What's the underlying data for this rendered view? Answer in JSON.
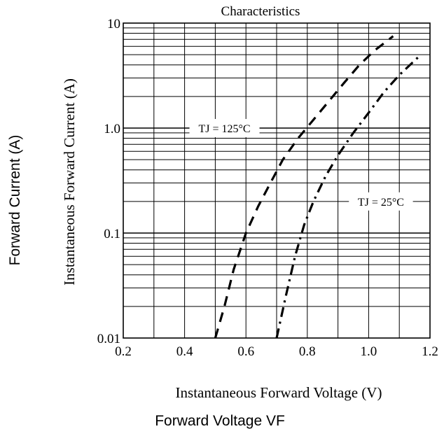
{
  "chart_data": {
    "type": "line",
    "title": "Characteristics",
    "xlabel": "Instantaneous Forward Voltage (V)",
    "ylabel": "Instantaneous Forward Current (A)",
    "outer_xlabel": "Forward Voltage VF",
    "outer_ylabel": "Forward Current (A)",
    "xlim": [
      0.2,
      1.2
    ],
    "ylim": [
      0.01,
      10
    ],
    "yscale": "log",
    "grid": true,
    "x_ticks": [
      {
        "value": 0.2,
        "label": "0.2"
      },
      {
        "value": 0.4,
        "label": "0.4"
      },
      {
        "value": 0.6,
        "label": "0.6"
      },
      {
        "value": 0.8,
        "label": "0.8"
      },
      {
        "value": 1.0,
        "label": "1.0"
      },
      {
        "value": 1.2,
        "label": "1.2"
      }
    ],
    "y_ticks": [
      {
        "value": 0.01,
        "label": "0.01"
      },
      {
        "value": 0.1,
        "label": "0.1"
      },
      {
        "value": 1,
        "label": "1.0"
      },
      {
        "value": 10,
        "label": "10"
      }
    ],
    "series": [
      {
        "name": "TJ = 125°C",
        "style": "dashed",
        "x": [
          0.5,
          0.53,
          0.56,
          0.6,
          0.64,
          0.68,
          0.72,
          0.77,
          0.82,
          0.87,
          0.92,
          0.97,
          1.02,
          1.08
        ],
        "y": [
          0.01,
          0.02,
          0.045,
          0.1,
          0.18,
          0.3,
          0.5,
          0.8,
          1.2,
          1.8,
          2.7,
          4.0,
          5.5,
          7.5
        ]
      },
      {
        "name": "TJ = 25°C",
        "style": "dash-dot",
        "x": [
          0.7,
          0.73,
          0.76,
          0.79,
          0.82,
          0.86,
          0.9,
          0.95,
          1.0,
          1.05,
          1.1,
          1.17
        ],
        "y": [
          0.01,
          0.025,
          0.06,
          0.12,
          0.2,
          0.35,
          0.55,
          0.9,
          1.4,
          2.2,
          3.2,
          5.0
        ]
      }
    ],
    "annotations": [
      {
        "text": "TJ = 125°C",
        "x": 0.53,
        "y": 1.0
      },
      {
        "text": "TJ = 25°C",
        "x": 1.04,
        "y": 0.2
      }
    ]
  }
}
